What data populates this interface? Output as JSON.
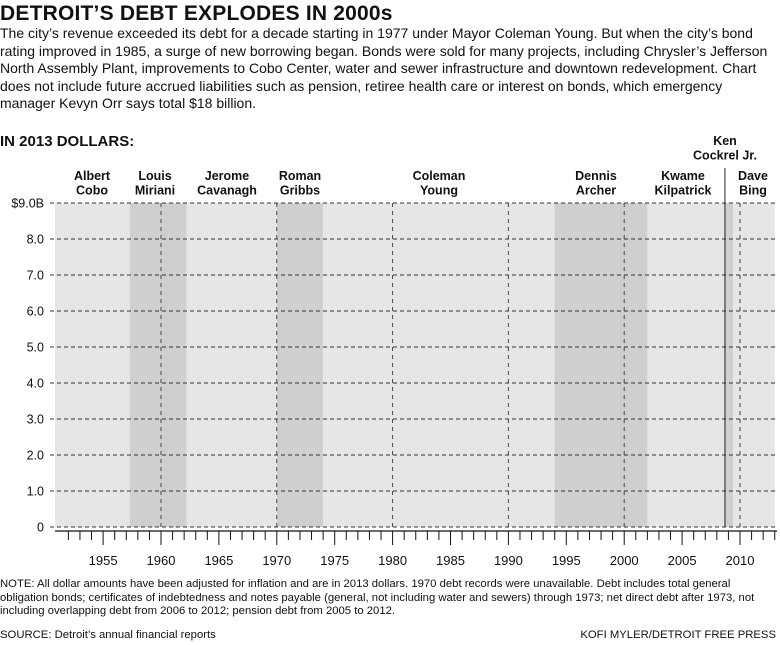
{
  "title": "DETROIT’S DEBT EXPLODES IN 2000s",
  "intro": "The city’s revenue exceeded its debt for a decade starting in 1977 under Mayor Coleman Young. But when the city’s bond rating improved in 1985, a surge of new borrowing began. Bonds were sold for many projects, including Chrysler’s Jefferson North Assembly Plant, improvements to Cobo Center, water and sewer infrastructure and downtown redevelopment. Chart does not include future accrued liabilities such as pension, retiree health care or interest on bonds, which emergency manager Kevyn Orr says total $18 billion.",
  "note": "NOTE: All dollar amounts have been adjusted for inflation and are in 2013 dollars. 1970 debt records were unavailable. Debt includes total general obligation bonds; certificates of indebtedness and notes payable (general, not including water and sewers) through 1973; net direct debt after 1973, not including overlapping debt from 2006 to 2012; pension debt from 2005 to 2012.",
  "source": "SOURCE: Detroit’s annual financial reports",
  "credit": "KOFI MYLER/DETROIT FREE PRESS",
  "colors": {
    "band_light": "#e6e6e6",
    "band_dark": "#cfcfcf",
    "gridline": "#333333",
    "divider": "#444444"
  },
  "chart_data": {
    "type": "area",
    "subtitle": "IN 2013 DOLLARS:",
    "xlim": [
      1950,
      2013
    ],
    "ylim": [
      0,
      9
    ],
    "x_ticks": [
      1955,
      1960,
      1965,
      1970,
      1975,
      1980,
      1985,
      1990,
      1995,
      2000,
      2005,
      2010
    ],
    "y_ticks": [
      {
        "value": 0,
        "label": "0"
      },
      {
        "value": 1,
        "label": "1.0"
      },
      {
        "value": 2,
        "label": "2.0"
      },
      {
        "value": 3,
        "label": "3.0"
      },
      {
        "value": 4,
        "label": "4.0"
      },
      {
        "value": 5,
        "label": "5.0"
      },
      {
        "value": 6,
        "label": "6.0"
      },
      {
        "value": 7,
        "label": "7.0"
      },
      {
        "value": 8,
        "label": "8.0"
      },
      {
        "value": 9,
        "label": "$9.0B"
      }
    ],
    "mayors": [
      {
        "lines": [
          "Albert",
          "Cobo"
        ],
        "start": 1950,
        "end": 1957.3,
        "shade": false
      },
      {
        "lines": [
          "Louis",
          "Miriani"
        ],
        "start": 1957.3,
        "end": 1962.2,
        "shade": true
      },
      {
        "lines": [
          "Jerome",
          "Cavanagh"
        ],
        "start": 1962.2,
        "end": 1970.0,
        "shade": false
      },
      {
        "lines": [
          "Roman",
          "Gribbs"
        ],
        "start": 1970.0,
        "end": 1974.0,
        "shade": true
      },
      {
        "lines": [
          "Coleman",
          "Young"
        ],
        "start": 1974.0,
        "end": 1994.0,
        "shade": false
      },
      {
        "lines": [
          "Dennis",
          "Archer"
        ],
        "start": 1994.0,
        "end": 2002.0,
        "shade": true
      },
      {
        "lines": [
          "Kwame",
          "Kilpatrick"
        ],
        "start": 2002.0,
        "end": 2008.7,
        "shade": false
      },
      {
        "lines": [
          "Ken",
          "Cockrel Jr."
        ],
        "start": 2008.7,
        "end": 2009.4,
        "shade": true
      },
      {
        "lines": [
          "Dave",
          "Bing"
        ],
        "start": 2009.4,
        "end": 2013,
        "shade": false
      }
    ],
    "decade_dividers": [
      1960,
      1970,
      1980,
      1990,
      2000,
      2010
    ],
    "kilpatrick_divider": 2008.7
  }
}
